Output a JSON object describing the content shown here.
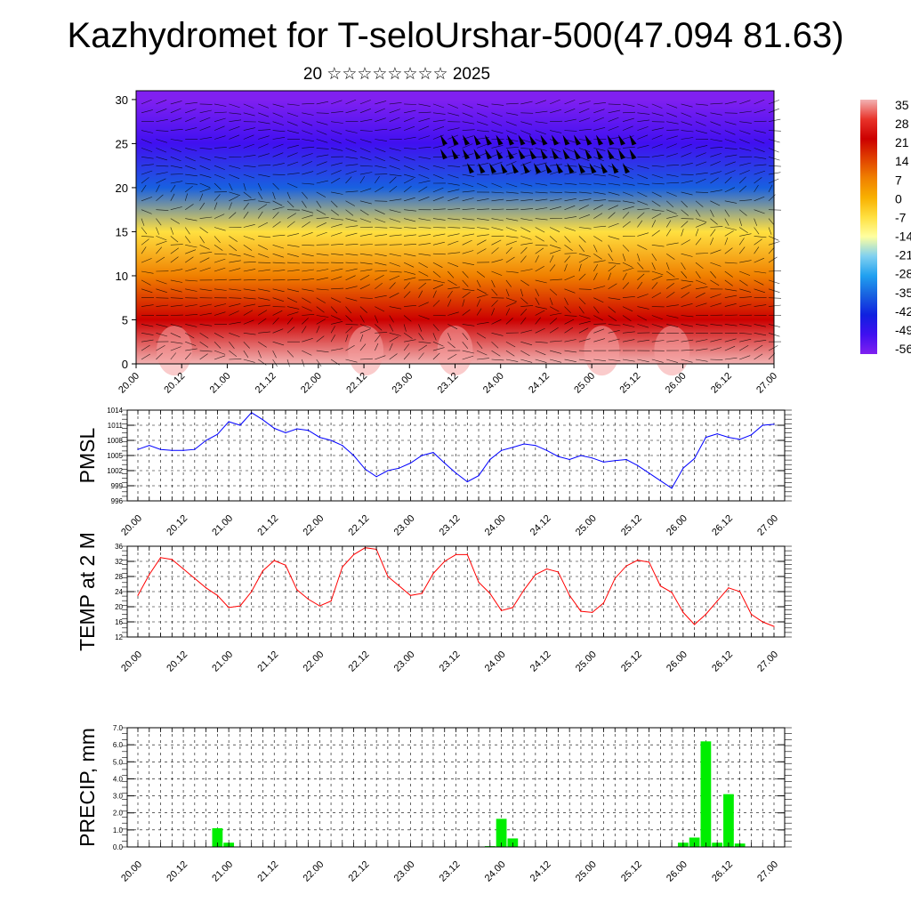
{
  "title": "Kazhydromet for T-seloUrshar-500(47.094 81.63)",
  "subtitle": "20 ☆☆☆☆☆☆☆☆ 2025",
  "x_ticks": [
    "20.00",
    "20.12",
    "21.00",
    "21.12",
    "22.00",
    "22.12",
    "23.00",
    "23.12",
    "24.00",
    "24.12",
    "25.00",
    "25.12",
    "26.00",
    "26.12",
    "27.00"
  ],
  "chart_data": [
    {
      "type": "heatmap",
      "ylim": [
        0,
        31
      ],
      "y_ticks": [
        0,
        5,
        10,
        15,
        20,
        25,
        30
      ],
      "colorbar": {
        "labels": [
          "35",
          "28",
          "21",
          "14",
          "7",
          "0",
          "-7",
          "-14",
          "-21",
          "-28",
          "-35",
          "-42",
          "-49",
          "-56"
        ],
        "colors": [
          "#f2b3b3",
          "#e8332a",
          "#cc0000",
          "#e04000",
          "#f08000",
          "#f8b000",
          "#ffe040",
          "#ffffa0",
          "#80d0f0",
          "#20a0f0",
          "#1860e0",
          "#1020e0",
          "#4010f0",
          "#8020f0"
        ]
      },
      "temperature_by_height": [
        {
          "level": 0,
          "value": 35
        },
        {
          "level": 5,
          "value": 21
        },
        {
          "level": 10,
          "value": 7
        },
        {
          "level": 15,
          "value": -7
        },
        {
          "level": 20,
          "value": -35
        },
        {
          "level": 25,
          "value": -49
        },
        {
          "level": 30,
          "value": -56
        }
      ]
    },
    {
      "type": "line",
      "ylabel": "PMSL",
      "ylim": [
        996,
        1014
      ],
      "y_ticks": [
        996,
        999,
        1002,
        1005,
        1008,
        1011,
        1014
      ],
      "color": "#0000ff",
      "x": [
        0,
        1,
        2,
        3,
        4,
        5,
        6,
        7,
        8,
        9,
        10,
        11,
        12,
        13,
        14,
        15,
        16,
        17,
        18,
        19,
        20,
        21,
        22,
        23,
        24,
        25,
        26,
        27,
        28,
        29,
        30,
        31,
        32,
        33,
        34,
        35,
        36,
        37,
        38,
        39,
        40,
        41,
        42,
        43,
        44,
        45,
        46,
        47,
        48,
        49,
        50,
        51,
        52,
        53,
        54,
        55,
        56
      ],
      "values": [
        1006.2,
        1007,
        1006.2,
        1006,
        1006,
        1006.2,
        1008,
        1009.2,
        1011.7,
        1011,
        1013.5,
        1012.1,
        1010.4,
        1009.5,
        1010.3,
        1010,
        1008.6,
        1008,
        1007,
        1005,
        1002.3,
        1000.8,
        1002,
        1002.5,
        1003.5,
        1005,
        1005.6,
        1003.5,
        1001.5,
        999.8,
        1001,
        1004.2,
        1006,
        1006.6,
        1007.3,
        1007,
        1006,
        1004.8,
        1004.2,
        1005,
        1004.5,
        1003.7,
        1004,
        1004.2,
        1003,
        1001.5,
        1000,
        998.5,
        1002.5,
        1004.4,
        1008.6,
        1009.3,
        1008.6,
        1008.2,
        1009.1,
        1011,
        1011.2
      ]
    },
    {
      "type": "line",
      "ylabel": "TEMP at 2 M",
      "ylim": [
        12,
        36
      ],
      "y_ticks": [
        12,
        16,
        20,
        24,
        28,
        32,
        36
      ],
      "color": "#ff0000",
      "x": [
        0,
        1,
        2,
        3,
        4,
        5,
        6,
        7,
        8,
        9,
        10,
        11,
        12,
        13,
        14,
        15,
        16,
        17,
        18,
        19,
        20,
        21,
        22,
        23,
        24,
        25,
        26,
        27,
        28,
        29,
        30,
        31,
        32,
        33,
        34,
        35,
        36,
        37,
        38,
        39,
        40,
        41,
        42,
        43,
        44,
        45,
        46,
        47,
        48,
        49,
        50,
        51,
        52,
        53,
        54,
        55,
        56
      ],
      "values": [
        23,
        28.5,
        33,
        32.5,
        30,
        27.5,
        25,
        23,
        19.8,
        20.2,
        24,
        29.5,
        32.2,
        31,
        24.5,
        22,
        20.2,
        21.5,
        30.5,
        33.8,
        35.6,
        35.2,
        28,
        25.5,
        23,
        23.5,
        28.8,
        32,
        33.8,
        33.8,
        26.5,
        23.5,
        19,
        19.8,
        24.5,
        28.5,
        30,
        29.2,
        23,
        18.8,
        18.5,
        21,
        27.5,
        30.8,
        32.3,
        31.8,
        25.5,
        23.8,
        18.5,
        15.3,
        18,
        21.5,
        25,
        24,
        18,
        16,
        14.8
      ]
    },
    {
      "type": "bar",
      "ylabel": "PRECIP, mm",
      "ylim": [
        0,
        7
      ],
      "y_ticks": [
        "0.0",
        "1.0",
        "2.0",
        "3.0",
        "4.0",
        "5.0",
        "6.0",
        "7.0"
      ],
      "color": "#00ee00",
      "x": [
        7,
        8,
        31,
        32,
        33,
        48,
        49,
        50,
        51,
        52,
        53
      ],
      "values": [
        1.1,
        0.25,
        0.05,
        1.65,
        0.5,
        0.25,
        0.55,
        6.2,
        0.25,
        3.1,
        0.2
      ]
    }
  ]
}
